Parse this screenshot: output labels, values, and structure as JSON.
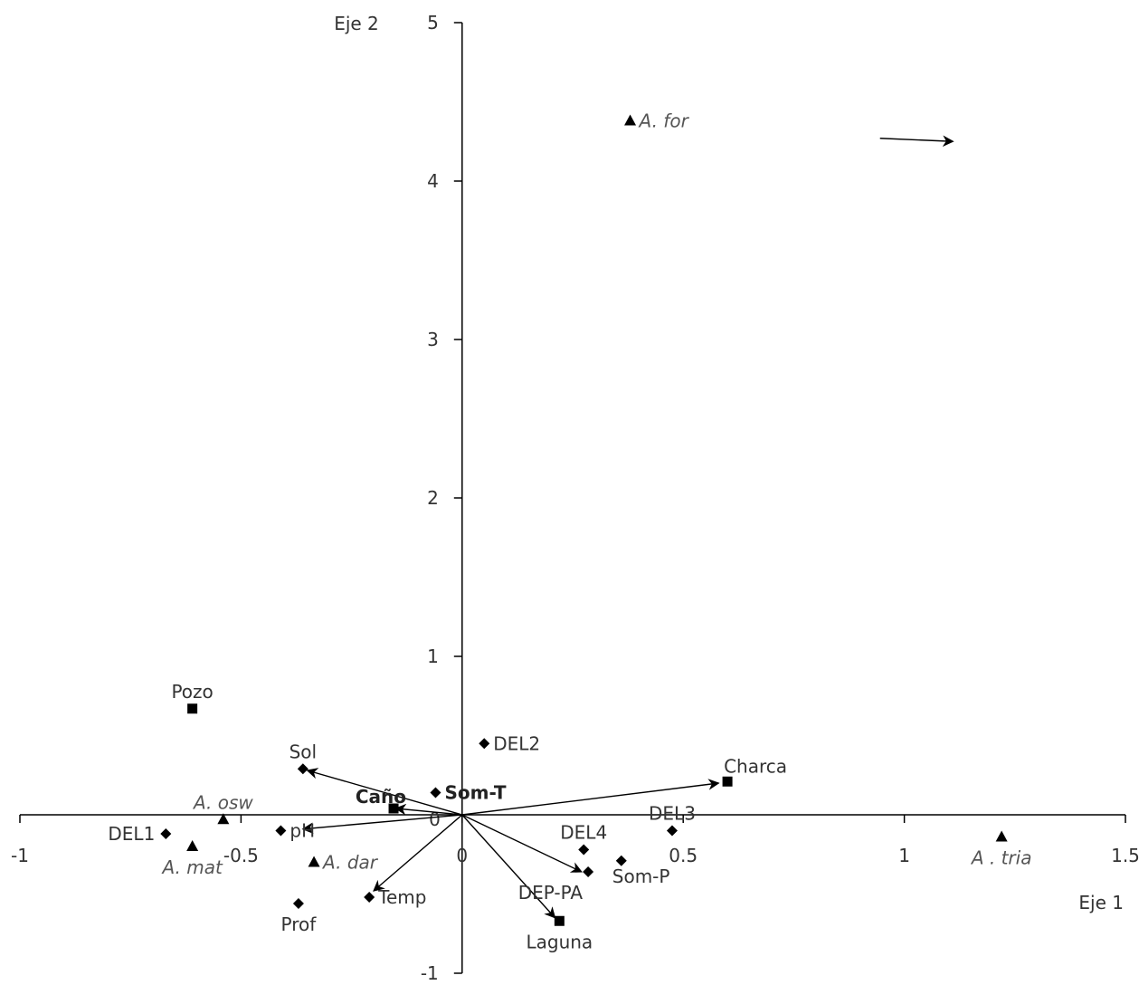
{
  "chart_data": {
    "type": "scatter",
    "xlabel": "Eje 1",
    "ylabel": "Eje 2",
    "xlim": [
      -1,
      1.5
    ],
    "ylim": [
      -1,
      5
    ],
    "x_ticks": [
      {
        "value": -1,
        "label": "-1"
      },
      {
        "value": -0.5,
        "label": "-0.5"
      },
      {
        "value": 0,
        "label": "0"
      },
      {
        "value": 0.5,
        "label": "0.5"
      },
      {
        "value": 1,
        "label": "1"
      },
      {
        "value": 1.5,
        "label": "1.5"
      }
    ],
    "y_ticks": [
      {
        "value": -1,
        "label": "-1"
      },
      {
        "value": 0,
        "label": "0"
      },
      {
        "value": 1,
        "label": "1"
      },
      {
        "value": 2,
        "label": "2"
      },
      {
        "value": 3,
        "label": "3"
      },
      {
        "value": 4,
        "label": "4"
      },
      {
        "value": 5,
        "label": "5"
      }
    ],
    "series": [
      {
        "marker": "square",
        "points": [
          {
            "label": "Pozo",
            "x": -0.61,
            "y": 0.67,
            "anchor": "above"
          },
          {
            "label": "Caño",
            "x": -0.155,
            "y": 0.04,
            "anchor": "above-left",
            "bold": true
          },
          {
            "label": "Charca",
            "x": 0.6,
            "y": 0.21,
            "anchor": "above-right"
          },
          {
            "label": "Laguna",
            "x": 0.22,
            "y": -0.67,
            "anchor": "below"
          }
        ]
      },
      {
        "marker": "diamond",
        "points": [
          {
            "label": "DEL1",
            "x": -0.67,
            "y": -0.12,
            "anchor": "left"
          },
          {
            "label": "DEL2",
            "x": 0.05,
            "y": 0.45,
            "anchor": "right"
          },
          {
            "label": "DEL3",
            "x": 0.475,
            "y": -0.1,
            "anchor": "above"
          },
          {
            "label": "DEL4",
            "x": 0.275,
            "y": -0.22,
            "anchor": "above"
          },
          {
            "label": "Sol",
            "x": -0.36,
            "y": 0.29,
            "anchor": "above"
          },
          {
            "label": "pH",
            "x": -0.41,
            "y": -0.1,
            "anchor": "right"
          },
          {
            "label": "Temp",
            "x": -0.21,
            "y": -0.52,
            "anchor": "right"
          },
          {
            "label": "Prof",
            "x": -0.37,
            "y": -0.56,
            "anchor": "below"
          },
          {
            "label": "Som-T",
            "x": -0.06,
            "y": 0.14,
            "anchor": "right",
            "bold": true
          },
          {
            "label": "DEP-PA",
            "x": 0.285,
            "y": -0.36,
            "anchor": "below-left"
          },
          {
            "label": "Som-P",
            "x": 0.36,
            "y": -0.29,
            "anchor": "below-right"
          }
        ]
      },
      {
        "marker": "triangle",
        "points": [
          {
            "label": "A. for",
            "x": 0.38,
            "y": 4.38,
            "anchor": "right",
            "italic": true
          },
          {
            "label": "A. osw",
            "x": -0.54,
            "y": -0.03,
            "anchor": "above",
            "italic": true
          },
          {
            "label": "A. mat",
            "x": -0.61,
            "y": -0.2,
            "anchor": "below",
            "italic": true
          },
          {
            "label": "A. dar",
            "x": -0.335,
            "y": -0.3,
            "anchor": "right",
            "italic": true
          },
          {
            "label": "A . tria",
            "x": 1.22,
            "y": -0.14,
            "anchor": "below",
            "italic": true
          }
        ]
      }
    ],
    "vectors": [
      {
        "name": "Sol",
        "x": -0.35,
        "y": 0.28
      },
      {
        "name": "Caño",
        "x": -0.15,
        "y": 0.04
      },
      {
        "name": "pH",
        "x": -0.36,
        "y": -0.09
      },
      {
        "name": "Temp",
        "x": -0.2,
        "y": -0.48
      },
      {
        "name": "Charca",
        "x": 0.58,
        "y": 0.2
      },
      {
        "name": "DEP-PA",
        "x": 0.27,
        "y": -0.36
      },
      {
        "name": "Laguna",
        "x": 0.21,
        "y": -0.65
      }
    ],
    "legend_arrow": {
      "x1": 0.945,
      "y1": 4.27,
      "x2": 1.11,
      "y2": 4.25
    }
  }
}
